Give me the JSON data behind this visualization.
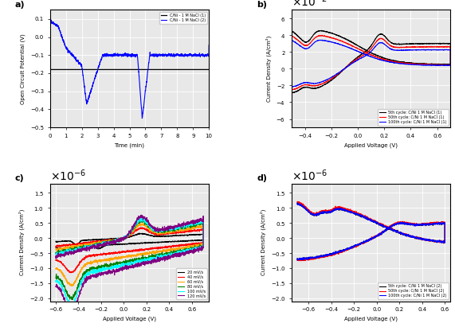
{
  "panel_a": {
    "label": "a)",
    "xlabel": "Time (min)",
    "ylabel": "Open Circuit Potential (V)",
    "xlim": [
      0,
      10
    ],
    "ylim": [
      -0.5,
      0.15
    ],
    "yticks": [
      -0.5,
      -0.4,
      -0.3,
      -0.2,
      -0.1,
      0.0,
      0.1
    ],
    "xticks": [
      0,
      1,
      2,
      3,
      4,
      5,
      6,
      7,
      8,
      9,
      10
    ],
    "legend": [
      "C/Ni - 1 M NaCl (1)",
      "C/Ni - 1 M NaCl (2)"
    ],
    "line1_color": "black",
    "line2_color": "blue",
    "line1_value": -0.18
  },
  "panel_b": {
    "label": "b)",
    "xlabel": "Applied Voltage (V)",
    "ylabel": "Current Density (A/cm²)",
    "xlim": [
      -0.5,
      0.7
    ],
    "ylim": [
      -0.07,
      0.07
    ],
    "yticks": [
      -0.06,
      -0.04,
      -0.02,
      0,
      0.02,
      0.04,
      0.06
    ],
    "xticks": [
      -0.4,
      -0.2,
      0.0,
      0.2,
      0.4,
      0.6
    ],
    "legend": [
      "5th cycle: C/Ni 1 M NaCl (1)",
      "50th cycle: C/Ni 1 M NaCl (1)",
      "100th cycle: C/Ni 1 M NaCl (1)"
    ],
    "colors": [
      "black",
      "red",
      "blue"
    ]
  },
  "panel_c": {
    "label": "c)",
    "xlabel": "Applied Voltage (V)",
    "ylabel": "Current Density (A/cm²)",
    "xlim": [
      -0.65,
      0.75
    ],
    "ylim": [
      -2.1e-06,
      1.8e-06
    ],
    "legend": [
      "20 mV/s",
      "40 mV/s",
      "60 mV/s",
      "80 mV/s",
      "100 mV/s",
      "120 mV/s"
    ],
    "colors": [
      "black",
      "red",
      "orange",
      "green",
      "cyan",
      "purple"
    ]
  },
  "panel_d": {
    "label": "d)",
    "xlabel": "Applied Voltage (V)",
    "ylabel": "Current Density (A/cm²)",
    "xlim": [
      -0.75,
      0.65
    ],
    "ylim": [
      -2.1e-06,
      1.8e-06
    ],
    "yticks": [
      -2e-06,
      -1.5e-06,
      -1e-06,
      -5e-07,
      0,
      5e-07,
      1e-06,
      1.5e-06
    ],
    "legend": [
      "5th cycle: C/Ni 1 M NaCl (2)",
      "50th cycle: C/Ni 1 M NaCl (2)",
      "100th cycle: C/Ni 1 M NaCl (2)"
    ],
    "colors": [
      "black",
      "red",
      "blue"
    ]
  },
  "bg_color": "#e8e8e8",
  "grid_color": "white"
}
